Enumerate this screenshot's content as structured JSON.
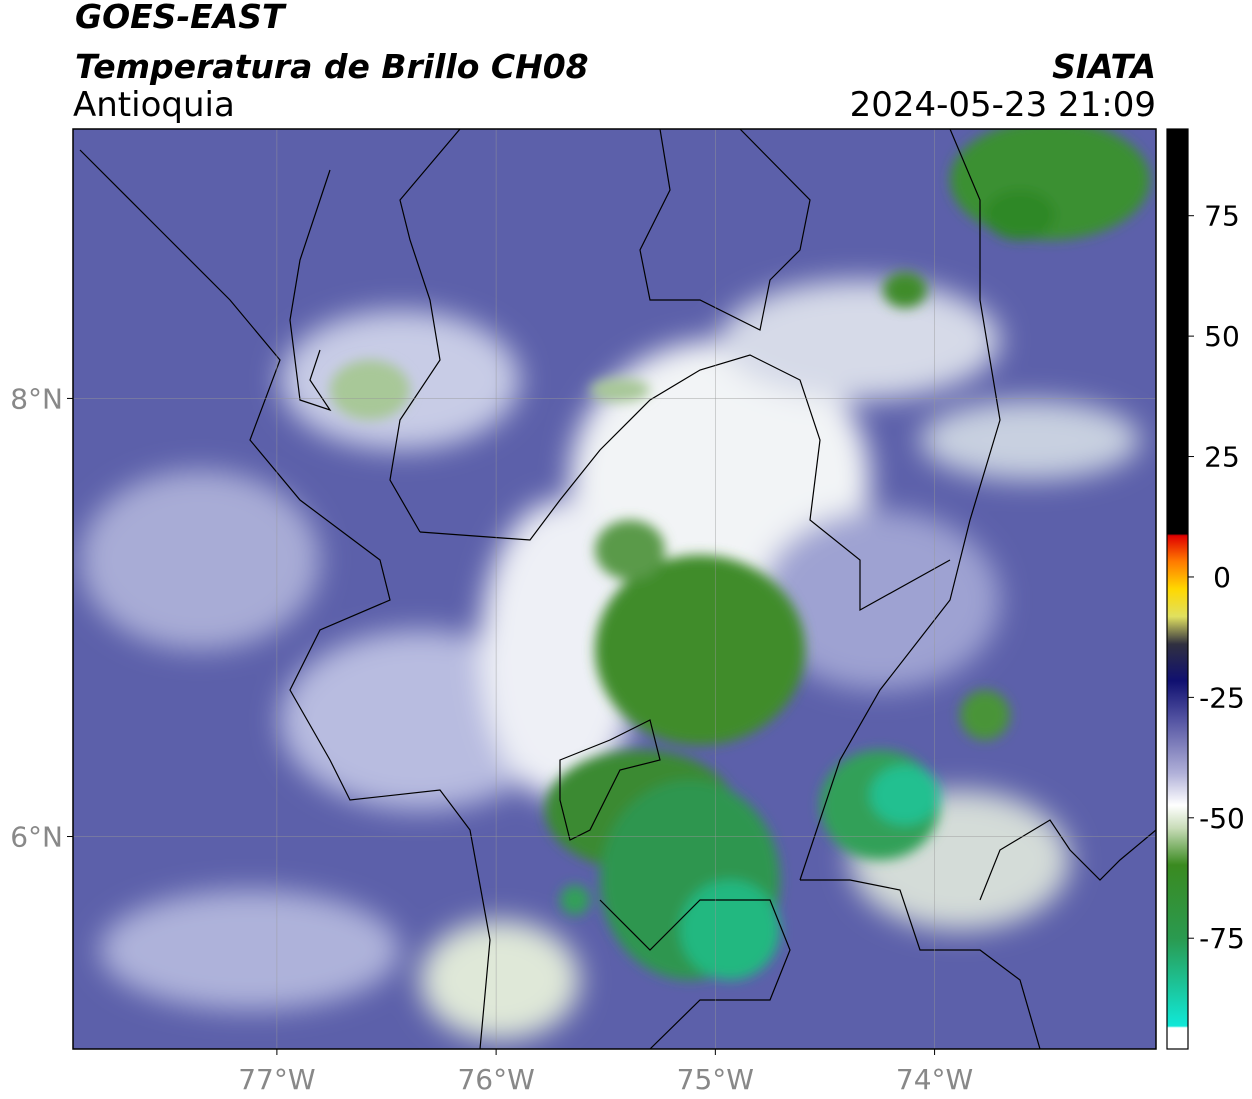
{
  "header": {
    "title": "GOES-EAST",
    "subtitle": "Temperatura de Brillo CH08",
    "region": "Antioquia",
    "source": "SIATA",
    "datetime": "2024-05-23 21:09"
  },
  "map": {
    "xlim": [
      -77.93,
      -72.99
    ],
    "ylim": [
      5.03,
      9.23
    ],
    "xticks": [
      {
        "value": -77,
        "label": "77°W"
      },
      {
        "value": -76,
        "label": "76°W"
      },
      {
        "value": -75,
        "label": "75°W"
      },
      {
        "value": -74,
        "label": "74°W"
      }
    ],
    "yticks": [
      {
        "value": 6,
        "label": "6°N"
      },
      {
        "value": 8,
        "label": "8°N"
      }
    ]
  },
  "colorbar": {
    "lim": [
      -98,
      93
    ],
    "ticks": [
      75,
      50,
      25,
      0,
      -25,
      -50,
      -75
    ]
  }
}
